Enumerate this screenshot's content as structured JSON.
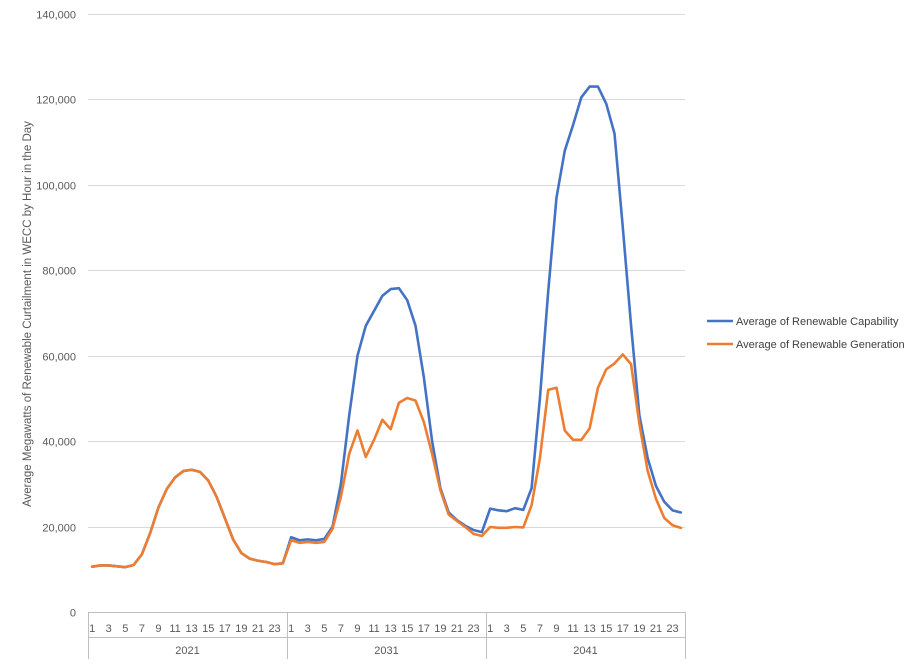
{
  "chart_data": {
    "type": "line",
    "ylabel": "Average Megawatts of Renewable Curtailment in WECC by Hour in the Day",
    "ylim": [
      0,
      140000
    ],
    "y_ticks": [
      "0",
      "20,000",
      "40,000",
      "60,000",
      "80,000",
      "100,000",
      "120,000",
      "140,000"
    ],
    "y_tick_values": [
      0,
      20000,
      40000,
      60000,
      80000,
      100000,
      120000,
      140000
    ],
    "grid": true,
    "legend_position": "right",
    "groups": [
      "2021",
      "2031",
      "2041"
    ],
    "hours_per_group": 24,
    "x_tick_labels": [
      "1",
      "3",
      "5",
      "7",
      "9",
      "11",
      "13",
      "15",
      "17",
      "19",
      "21",
      "23"
    ],
    "series": [
      {
        "name": "Average of Renewable Capability",
        "color": "#4472C4",
        "values": [
          10600,
          10900,
          10900,
          10700,
          10500,
          11000,
          13500,
          18500,
          24500,
          28800,
          31500,
          33000,
          33300,
          32800,
          30800,
          27000,
          22000,
          17000,
          13800,
          12500,
          12000,
          11700,
          11200,
          11400,
          17500,
          16800,
          17000,
          16800,
          17100,
          20000,
          30000,
          46000,
          60000,
          67000,
          70500,
          74000,
          75600,
          75800,
          73000,
          67000,
          55000,
          40000,
          29000,
          23300,
          21500,
          20200,
          19200,
          18700,
          24200,
          23800,
          23600,
          24300,
          23900,
          29000,
          50000,
          75000,
          97000,
          108000,
          114000,
          120500,
          123000,
          123000,
          119000,
          112000,
          90000,
          67000,
          46000,
          36000,
          29500,
          25800,
          23800,
          23300
        ]
      },
      {
        "name": "Average of Renewable Generation",
        "color": "#ED7D31",
        "values": [
          10600,
          10900,
          10900,
          10700,
          10500,
          11000,
          13500,
          18500,
          24500,
          28800,
          31500,
          33000,
          33300,
          32800,
          30800,
          27000,
          22000,
          17000,
          13800,
          12500,
          12000,
          11700,
          11200,
          11400,
          16800,
          16200,
          16400,
          16200,
          16400,
          19500,
          27000,
          37000,
          42500,
          36300,
          40300,
          45000,
          42800,
          49000,
          50100,
          49500,
          44500,
          37000,
          28500,
          22800,
          21300,
          19900,
          18300,
          17800,
          19900,
          19700,
          19700,
          19900,
          19800,
          25000,
          36000,
          52000,
          52500,
          42500,
          40300,
          40300,
          43000,
          52500,
          56800,
          58200,
          60300,
          58000,
          44000,
          33000,
          26500,
          22000,
          20300,
          19700
        ]
      }
    ]
  }
}
